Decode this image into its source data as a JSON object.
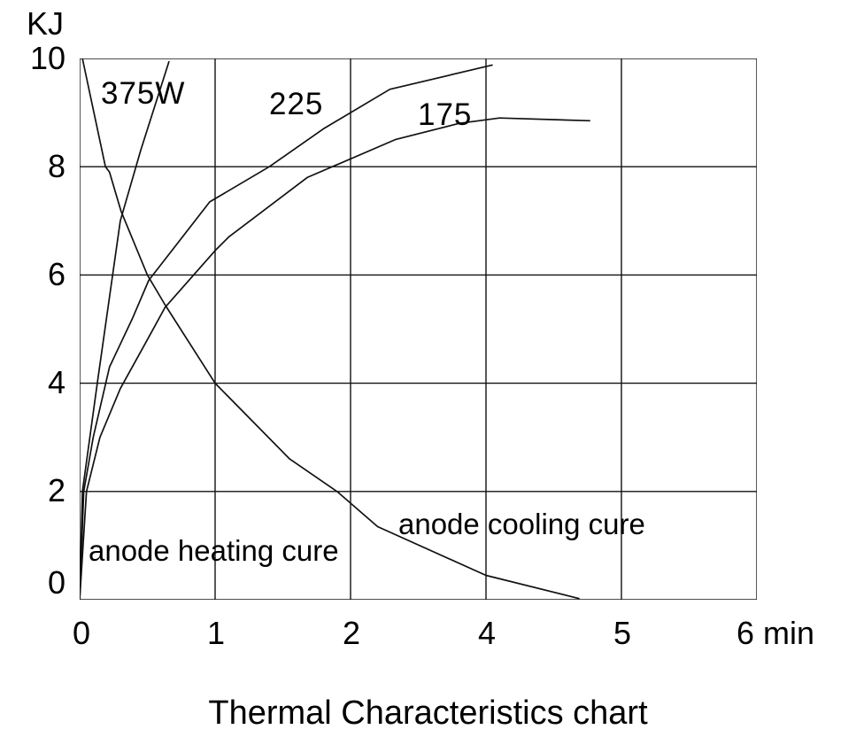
{
  "title": "Thermal Characteristics chart",
  "y_axis": {
    "title": "KJ",
    "ticks": [
      "10",
      "8",
      "6",
      "4",
      "2",
      "0"
    ]
  },
  "x_axis": {
    "ticks": [
      "0",
      "1",
      "2",
      "4",
      "5",
      "6"
    ],
    "unit": "min"
  },
  "curve_labels": {
    "c375": "375W",
    "c225": "225",
    "c175": "175"
  },
  "annotations": {
    "heating": "anode heating cure",
    "cooling": "anode cooling cure"
  },
  "colors": {
    "background": "#ffffff",
    "line": "#111111",
    "text": "#000000"
  },
  "chart_data": {
    "type": "line",
    "title": "Thermal Characteristics chart",
    "xlabel": "min",
    "ylabel": "KJ",
    "x_tick_labels": [
      "0",
      "1",
      "2",
      "4",
      "5",
      "6"
    ],
    "y_ticks": [
      0,
      2,
      4,
      6,
      8,
      10
    ],
    "ylim": [
      0,
      10
    ],
    "x_gridline_units": [
      0,
      5
    ],
    "note": "x values are in equally-spaced gridline units; the printed axis labels skip the number 3 (0,1,2,4,5,6min as shown)",
    "grid": true,
    "legend_position": "inline-labels",
    "series": [
      {
        "key": "heating-375w",
        "name": "375W anode heating cure",
        "points": [
          [
            0,
            0
          ],
          [
            0.02,
            2.0
          ],
          [
            0.13,
            4.0
          ],
          [
            0.3,
            7.0
          ],
          [
            0.45,
            8.3
          ],
          [
            0.59,
            9.4
          ],
          [
            0.66,
            9.95
          ]
        ]
      },
      {
        "key": "heating-225",
        "name": "225 anode heating cure",
        "points": [
          [
            0,
            0
          ],
          [
            0.03,
            2.0
          ],
          [
            0.1,
            3.0
          ],
          [
            0.22,
            4.3
          ],
          [
            0.39,
            5.2
          ],
          [
            0.51,
            5.9
          ],
          [
            0.96,
            7.35
          ],
          [
            1.4,
            8.0
          ],
          [
            1.8,
            8.7
          ],
          [
            2.29,
            9.43
          ],
          [
            3.05,
            9.88
          ]
        ]
      },
      {
        "key": "heating-175",
        "name": "175 anode heating cure",
        "points": [
          [
            0,
            0
          ],
          [
            0.05,
            2.0
          ],
          [
            0.15,
            3.0
          ],
          [
            0.3,
            3.9
          ],
          [
            0.51,
            4.85
          ],
          [
            0.63,
            5.4
          ],
          [
            1.0,
            6.45
          ],
          [
            1.1,
            6.7
          ],
          [
            1.68,
            7.8
          ],
          [
            2.33,
            8.5
          ],
          [
            2.8,
            8.8
          ],
          [
            3.1,
            8.9
          ],
          [
            3.77,
            8.85
          ]
        ]
      },
      {
        "key": "cooling",
        "name": "anode cooling cure",
        "points": [
          [
            0.02,
            10.0
          ],
          [
            0.19,
            8.0
          ],
          [
            0.22,
            7.9
          ],
          [
            0.305,
            7.18
          ],
          [
            0.5,
            6.0
          ],
          [
            0.63,
            5.45
          ],
          [
            1.0,
            4.0
          ],
          [
            1.55,
            2.6
          ],
          [
            1.9,
            2.0
          ],
          [
            2.2,
            1.35
          ],
          [
            3.0,
            0.45
          ],
          [
            3.69,
            0.02
          ]
        ]
      }
    ]
  }
}
